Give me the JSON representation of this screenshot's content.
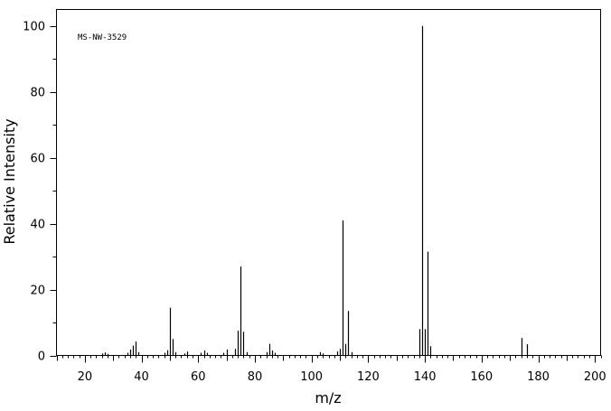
{
  "chart_data": {
    "type": "bar",
    "annotation": "MS-NW-3529",
    "xlabel": "m/z",
    "ylabel": "Relative Intensity",
    "xlim": [
      10,
      202
    ],
    "ylim": [
      0,
      105
    ],
    "x_major_ticks": [
      20,
      40,
      60,
      80,
      100,
      120,
      140,
      160,
      180,
      200
    ],
    "x_tick_labels": [
      "20",
      "40",
      "60",
      "80",
      "100",
      "120",
      "140",
      "160",
      "180",
      "200"
    ],
    "y_major_ticks": [
      0,
      20,
      40,
      60,
      80,
      100
    ],
    "y_tick_labels": [
      "0",
      "20",
      "40",
      "60",
      "80",
      "100"
    ],
    "grid": false,
    "peaks": [
      {
        "x": 26,
        "y": 0.6
      },
      {
        "x": 27,
        "y": 0.9
      },
      {
        "x": 28,
        "y": 0.5
      },
      {
        "x": 35,
        "y": 0.8
      },
      {
        "x": 36,
        "y": 1.8
      },
      {
        "x": 37,
        "y": 3.0
      },
      {
        "x": 38,
        "y": 4.2
      },
      {
        "x": 39,
        "y": 1.0
      },
      {
        "x": 48,
        "y": 0.8
      },
      {
        "x": 49,
        "y": 1.6
      },
      {
        "x": 50,
        "y": 14.5
      },
      {
        "x": 51,
        "y": 5.0
      },
      {
        "x": 52,
        "y": 1.0
      },
      {
        "x": 55,
        "y": 0.6
      },
      {
        "x": 56,
        "y": 1.2
      },
      {
        "x": 61,
        "y": 0.8
      },
      {
        "x": 62,
        "y": 1.5
      },
      {
        "x": 63,
        "y": 0.8
      },
      {
        "x": 69,
        "y": 0.8
      },
      {
        "x": 70,
        "y": 1.8
      },
      {
        "x": 73,
        "y": 2.0
      },
      {
        "x": 74,
        "y": 7.5
      },
      {
        "x": 75,
        "y": 27.0
      },
      {
        "x": 76,
        "y": 7.2
      },
      {
        "x": 77,
        "y": 1.0
      },
      {
        "x": 84,
        "y": 1.0
      },
      {
        "x": 85,
        "y": 3.5
      },
      {
        "x": 86,
        "y": 1.5
      },
      {
        "x": 87,
        "y": 0.8
      },
      {
        "x": 103,
        "y": 1.0
      },
      {
        "x": 104,
        "y": 0.6
      },
      {
        "x": 109,
        "y": 1.2
      },
      {
        "x": 110,
        "y": 2.0
      },
      {
        "x": 111,
        "y": 41.0
      },
      {
        "x": 112,
        "y": 3.5
      },
      {
        "x": 113,
        "y": 13.5
      },
      {
        "x": 114,
        "y": 1.0
      },
      {
        "x": 138,
        "y": 8.0
      },
      {
        "x": 139,
        "y": 100.0
      },
      {
        "x": 140,
        "y": 8.0
      },
      {
        "x": 141,
        "y": 31.5
      },
      {
        "x": 142,
        "y": 2.8
      },
      {
        "x": 174,
        "y": 5.3
      },
      {
        "x": 176,
        "y": 3.4
      }
    ]
  }
}
